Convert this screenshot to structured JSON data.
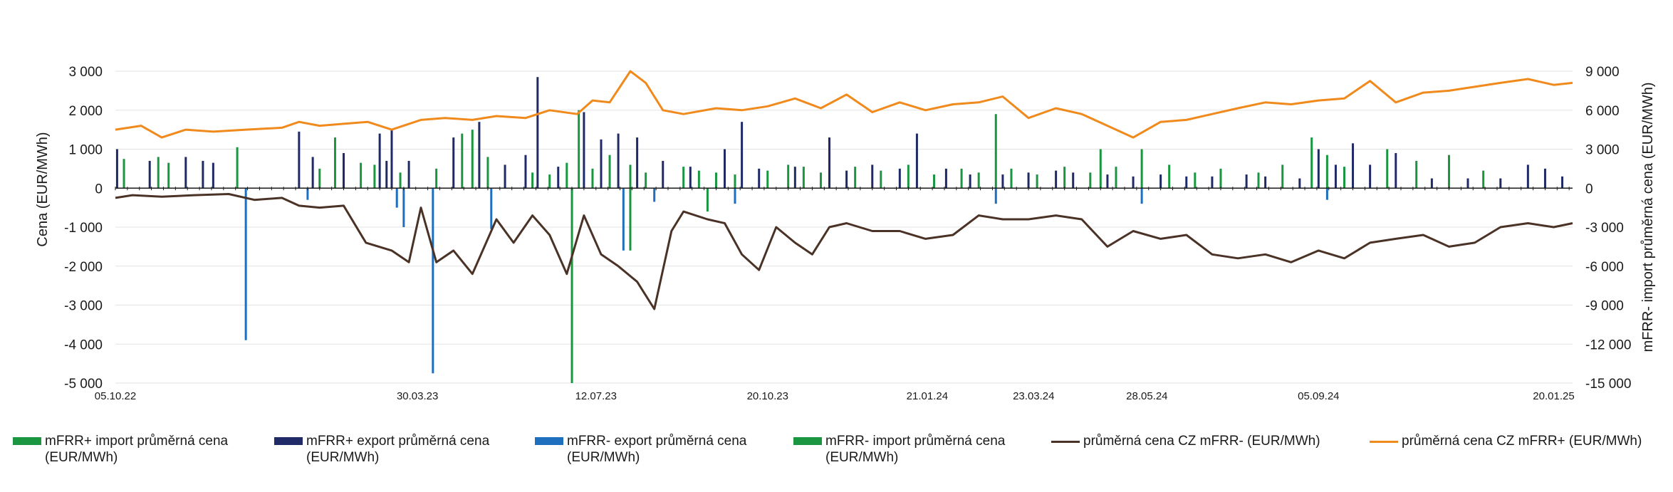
{
  "chart_data": {
    "type": "bar+line",
    "x_tick_labels": [
      "05.10.22",
      "30.03.23",
      "12.07.23",
      "20.10.23",
      "21.01.24",
      "23.03.24",
      "28.05.24",
      "05.09.24",
      "20.01.25"
    ],
    "x_tick_dates": [
      "2022-10-05",
      "2023-03-30",
      "2023-07-12",
      "2023-10-20",
      "2024-01-21",
      "2024-03-23",
      "2024-05-28",
      "2024-09-05",
      "2025-01-20"
    ],
    "x_range": [
      "2022-10-05",
      "2025-01-31"
    ],
    "ylabel": "Cena (EUR/MWh)",
    "ylim": [
      -5000,
      3000
    ],
    "yticks": [
      3000,
      2000,
      1000,
      0,
      -1000,
      -2000,
      -3000,
      -4000,
      -5000
    ],
    "ytick_labels": [
      "3 000",
      "2 000",
      "1 000",
      "0",
      "-1 000",
      "-2 000",
      "-3 000",
      "-4 000",
      "-5 000"
    ],
    "y2label": "mFRR- import průměrná cena (EUR/MWh)",
    "y2lim": [
      -15000,
      9000
    ],
    "y2ticks": [
      9000,
      6000,
      3000,
      0,
      -3000,
      -6000,
      -9000,
      -12000,
      -15000
    ],
    "y2tick_labels": [
      "9 000",
      "6 000",
      "3 000",
      "0",
      "-3 000",
      "-6 000",
      "-9 000",
      "-12 000",
      "-15 000"
    ],
    "grid": true,
    "legend_position": "bottom",
    "series": [
      {
        "name": "mFRR+ import průměrná cena (EUR/MWh)",
        "kind": "bar",
        "axis": "left",
        "color": "#1a9641",
        "points": [
          [
            "2022-10-10",
            750
          ],
          [
            "2022-10-30",
            800
          ],
          [
            "2022-11-05",
            650
          ],
          [
            "2022-12-15",
            1050
          ],
          [
            "2023-02-01",
            500
          ],
          [
            "2023-02-10",
            1300
          ],
          [
            "2023-02-25",
            650
          ],
          [
            "2023-03-05",
            600
          ],
          [
            "2023-03-20",
            400
          ],
          [
            "2023-04-10",
            500
          ],
          [
            "2023-04-25",
            1400
          ],
          [
            "2023-05-01",
            1500
          ],
          [
            "2023-05-10",
            800
          ],
          [
            "2023-06-05",
            400
          ],
          [
            "2023-06-15",
            350
          ],
          [
            "2023-06-25",
            650
          ],
          [
            "2023-07-02",
            2000
          ],
          [
            "2023-07-10",
            500
          ],
          [
            "2023-07-20",
            850
          ],
          [
            "2023-08-01",
            600
          ],
          [
            "2023-08-10",
            400
          ],
          [
            "2023-09-01",
            550
          ],
          [
            "2023-09-10",
            450
          ],
          [
            "2023-09-20",
            400
          ],
          [
            "2023-10-01",
            350
          ],
          [
            "2023-10-20",
            450
          ],
          [
            "2023-11-01",
            600
          ],
          [
            "2023-11-10",
            550
          ],
          [
            "2023-11-20",
            400
          ],
          [
            "2023-12-10",
            550
          ],
          [
            "2023-12-25",
            450
          ],
          [
            "2024-01-10",
            600
          ],
          [
            "2024-01-25",
            350
          ],
          [
            "2024-02-10",
            500
          ],
          [
            "2024-02-20",
            400
          ],
          [
            "2024-03-01",
            1900
          ],
          [
            "2024-03-10",
            500
          ],
          [
            "2024-03-25",
            350
          ],
          [
            "2024-04-10",
            550
          ],
          [
            "2024-04-25",
            400
          ],
          [
            "2024-05-01",
            1000
          ],
          [
            "2024-05-10",
            550
          ],
          [
            "2024-05-25",
            1000
          ],
          [
            "2024-06-10",
            600
          ],
          [
            "2024-06-25",
            400
          ],
          [
            "2024-07-10",
            500
          ],
          [
            "2024-08-01",
            400
          ],
          [
            "2024-08-15",
            600
          ],
          [
            "2024-09-01",
            1300
          ],
          [
            "2024-09-10",
            850
          ],
          [
            "2024-09-20",
            550
          ],
          [
            "2024-10-15",
            1000
          ],
          [
            "2024-11-01",
            700
          ],
          [
            "2024-11-20",
            850
          ],
          [
            "2024-12-10",
            450
          ]
        ]
      },
      {
        "name": "mFRR+ export průměrná cena (EUR/MWh)",
        "kind": "bar",
        "axis": "left",
        "color": "#1f2a66",
        "points": [
          [
            "2022-10-06",
            1000
          ],
          [
            "2022-10-25",
            700
          ],
          [
            "2022-11-15",
            800
          ],
          [
            "2022-11-25",
            700
          ],
          [
            "2022-12-01",
            650
          ],
          [
            "2023-01-20",
            1450
          ],
          [
            "2023-01-28",
            800
          ],
          [
            "2023-02-15",
            900
          ],
          [
            "2023-03-08",
            1400
          ],
          [
            "2023-03-12",
            700
          ],
          [
            "2023-03-15",
            1500
          ],
          [
            "2023-03-25",
            700
          ],
          [
            "2023-04-20",
            1300
          ],
          [
            "2023-05-05",
            1700
          ],
          [
            "2023-05-20",
            600
          ],
          [
            "2023-06-01",
            850
          ],
          [
            "2023-06-08",
            2850
          ],
          [
            "2023-06-20",
            550
          ],
          [
            "2023-07-05",
            1950
          ],
          [
            "2023-07-15",
            1250
          ],
          [
            "2023-07-25",
            1400
          ],
          [
            "2023-08-05",
            1300
          ],
          [
            "2023-08-20",
            700
          ],
          [
            "2023-09-05",
            550
          ],
          [
            "2023-09-25",
            1000
          ],
          [
            "2023-10-05",
            1700
          ],
          [
            "2023-10-15",
            500
          ],
          [
            "2023-11-05",
            550
          ],
          [
            "2023-11-25",
            1300
          ],
          [
            "2023-12-05",
            450
          ],
          [
            "2023-12-20",
            600
          ],
          [
            "2024-01-05",
            500
          ],
          [
            "2024-01-15",
            1400
          ],
          [
            "2024-02-01",
            500
          ],
          [
            "2024-02-15",
            350
          ],
          [
            "2024-03-05",
            350
          ],
          [
            "2024-03-20",
            400
          ],
          [
            "2024-04-05",
            450
          ],
          [
            "2024-04-15",
            400
          ],
          [
            "2024-05-05",
            350
          ],
          [
            "2024-05-20",
            300
          ],
          [
            "2024-06-05",
            350
          ],
          [
            "2024-06-20",
            300
          ],
          [
            "2024-07-05",
            300
          ],
          [
            "2024-07-25",
            350
          ],
          [
            "2024-08-05",
            300
          ],
          [
            "2024-08-25",
            250
          ],
          [
            "2024-09-05",
            1000
          ],
          [
            "2024-09-15",
            600
          ],
          [
            "2024-09-25",
            1150
          ],
          [
            "2024-10-05",
            600
          ],
          [
            "2024-10-20",
            900
          ],
          [
            "2024-11-10",
            250
          ],
          [
            "2024-12-01",
            250
          ],
          [
            "2024-12-20",
            250
          ],
          [
            "2025-01-05",
            600
          ],
          [
            "2025-01-15",
            500
          ],
          [
            "2025-01-25",
            300
          ]
        ]
      },
      {
        "name": "mFRR- export průměrná cena (EUR/MWh)",
        "kind": "bar",
        "axis": "left",
        "color": "#1f6fbf",
        "points": [
          [
            "2022-12-20",
            -3900
          ],
          [
            "2023-01-25",
            -300
          ],
          [
            "2023-03-18",
            -500
          ],
          [
            "2023-03-22",
            -1000
          ],
          [
            "2023-04-08",
            -4750
          ],
          [
            "2023-05-12",
            -1050
          ],
          [
            "2023-07-28",
            -1600
          ],
          [
            "2023-08-15",
            -350
          ],
          [
            "2023-10-01",
            -400
          ],
          [
            "2024-03-01",
            -400
          ],
          [
            "2024-05-25",
            -400
          ],
          [
            "2024-09-10",
            -300
          ]
        ]
      },
      {
        "name": "mFRR- import průměrná cena (EUR/MWh)",
        "kind": "bar",
        "axis": "right",
        "color": "#1a9641",
        "points": [
          [
            "2023-06-28",
            -15000
          ],
          [
            "2023-08-01",
            -4800
          ],
          [
            "2023-09-15",
            -1800
          ]
        ]
      },
      {
        "name": "průměrná cena CZ mFRR- (EUR/MWh)",
        "kind": "line",
        "axis": "left",
        "color": "#4a3326",
        "points": [
          [
            "2022-10-05",
            -250
          ],
          [
            "2022-10-15",
            -180
          ],
          [
            "2022-11-01",
            -220
          ],
          [
            "2022-11-20",
            -180
          ],
          [
            "2022-12-10",
            -150
          ],
          [
            "2022-12-25",
            -300
          ],
          [
            "2023-01-10",
            -250
          ],
          [
            "2023-01-20",
            -450
          ],
          [
            "2023-02-01",
            -500
          ],
          [
            "2023-02-15",
            -450
          ],
          [
            "2023-02-28",
            -1400
          ],
          [
            "2023-03-15",
            -1600
          ],
          [
            "2023-03-25",
            -1900
          ],
          [
            "2023-04-01",
            -500
          ],
          [
            "2023-04-10",
            -1900
          ],
          [
            "2023-04-20",
            -1600
          ],
          [
            "2023-05-01",
            -2200
          ],
          [
            "2023-05-15",
            -800
          ],
          [
            "2023-05-25",
            -1400
          ],
          [
            "2023-06-05",
            -700
          ],
          [
            "2023-06-15",
            -1200
          ],
          [
            "2023-06-25",
            -2200
          ],
          [
            "2023-07-05",
            -700
          ],
          [
            "2023-07-15",
            -1700
          ],
          [
            "2023-07-25",
            -2000
          ],
          [
            "2023-08-05",
            -2400
          ],
          [
            "2023-08-15",
            -3100
          ],
          [
            "2023-08-25",
            -1100
          ],
          [
            "2023-09-01",
            -600
          ],
          [
            "2023-09-15",
            -800
          ],
          [
            "2023-09-25",
            -900
          ],
          [
            "2023-10-05",
            -1700
          ],
          [
            "2023-10-15",
            -2100
          ],
          [
            "2023-10-25",
            -1000
          ],
          [
            "2023-11-05",
            -1400
          ],
          [
            "2023-11-15",
            -1700
          ],
          [
            "2023-11-25",
            -1000
          ],
          [
            "2023-12-05",
            -900
          ],
          [
            "2023-12-20",
            -1100
          ],
          [
            "2024-01-05",
            -1100
          ],
          [
            "2024-01-20",
            -1300
          ],
          [
            "2024-02-05",
            -1200
          ],
          [
            "2024-02-20",
            -700
          ],
          [
            "2024-03-05",
            -800
          ],
          [
            "2024-03-20",
            -800
          ],
          [
            "2024-04-05",
            -700
          ],
          [
            "2024-04-20",
            -800
          ],
          [
            "2024-05-05",
            -1500
          ],
          [
            "2024-05-20",
            -1100
          ],
          [
            "2024-06-05",
            -1300
          ],
          [
            "2024-06-20",
            -1200
          ],
          [
            "2024-07-05",
            -1700
          ],
          [
            "2024-07-20",
            -1800
          ],
          [
            "2024-08-05",
            -1700
          ],
          [
            "2024-08-20",
            -1900
          ],
          [
            "2024-09-05",
            -1600
          ],
          [
            "2024-09-20",
            -1800
          ],
          [
            "2024-10-05",
            -1400
          ],
          [
            "2024-10-20",
            -1300
          ],
          [
            "2024-11-05",
            -1200
          ],
          [
            "2024-11-20",
            -1500
          ],
          [
            "2024-12-05",
            -1400
          ],
          [
            "2024-12-20",
            -1000
          ],
          [
            "2025-01-05",
            -900
          ],
          [
            "2025-01-20",
            -1000
          ],
          [
            "2025-01-31",
            -900
          ]
        ]
      },
      {
        "name": "průměrná cena CZ mFRR+ (EUR/MWh)",
        "kind": "line",
        "axis": "left",
        "color": "#f08a1c",
        "points": [
          [
            "2022-10-05",
            1500
          ],
          [
            "2022-10-20",
            1600
          ],
          [
            "2022-11-01",
            1300
          ],
          [
            "2022-11-15",
            1500
          ],
          [
            "2022-12-01",
            1450
          ],
          [
            "2022-12-20",
            1500
          ],
          [
            "2023-01-10",
            1550
          ],
          [
            "2023-01-20",
            1700
          ],
          [
            "2023-02-01",
            1600
          ],
          [
            "2023-02-15",
            1650
          ],
          [
            "2023-03-01",
            1700
          ],
          [
            "2023-03-15",
            1500
          ],
          [
            "2023-04-01",
            1750
          ],
          [
            "2023-04-15",
            1800
          ],
          [
            "2023-05-01",
            1750
          ],
          [
            "2023-05-15",
            1850
          ],
          [
            "2023-06-01",
            1800
          ],
          [
            "2023-06-15",
            2000
          ],
          [
            "2023-07-01",
            1900
          ],
          [
            "2023-07-10",
            2250
          ],
          [
            "2023-07-20",
            2200
          ],
          [
            "2023-08-01",
            3000
          ],
          [
            "2023-08-10",
            2700
          ],
          [
            "2023-08-20",
            2000
          ],
          [
            "2023-09-01",
            1900
          ],
          [
            "2023-09-20",
            2050
          ],
          [
            "2023-10-05",
            2000
          ],
          [
            "2023-10-20",
            2100
          ],
          [
            "2023-11-05",
            2300
          ],
          [
            "2023-11-20",
            2050
          ],
          [
            "2023-12-05",
            2400
          ],
          [
            "2023-12-20",
            1950
          ],
          [
            "2024-01-05",
            2200
          ],
          [
            "2024-01-20",
            2000
          ],
          [
            "2024-02-05",
            2150
          ],
          [
            "2024-02-20",
            2200
          ],
          [
            "2024-03-05",
            2350
          ],
          [
            "2024-03-20",
            1800
          ],
          [
            "2024-04-05",
            2050
          ],
          [
            "2024-04-20",
            1900
          ],
          [
            "2024-05-05",
            1600
          ],
          [
            "2024-05-20",
            1300
          ],
          [
            "2024-06-05",
            1700
          ],
          [
            "2024-06-20",
            1750
          ],
          [
            "2024-07-05",
            1900
          ],
          [
            "2024-07-20",
            2050
          ],
          [
            "2024-08-05",
            2200
          ],
          [
            "2024-08-20",
            2150
          ],
          [
            "2024-09-05",
            2250
          ],
          [
            "2024-09-20",
            2300
          ],
          [
            "2024-10-05",
            2750
          ],
          [
            "2024-10-20",
            2200
          ],
          [
            "2024-11-05",
            2450
          ],
          [
            "2024-11-20",
            2500
          ],
          [
            "2024-12-05",
            2600
          ],
          [
            "2024-12-20",
            2700
          ],
          [
            "2025-01-05",
            2800
          ],
          [
            "2025-01-20",
            2650
          ],
          [
            "2025-01-31",
            2700
          ]
        ]
      }
    ]
  }
}
